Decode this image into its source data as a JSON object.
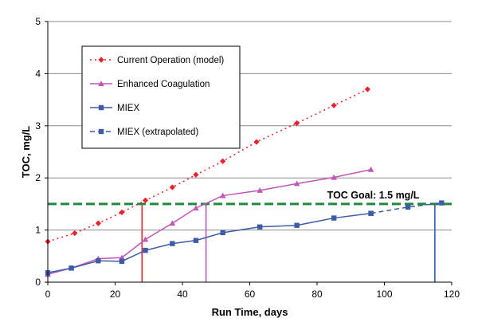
{
  "chart_data": {
    "type": "line",
    "xlabel": "Run Time, days",
    "ylabel": "TOC, mg/L",
    "xlim": [
      0,
      120
    ],
    "ylim": [
      0,
      5
    ],
    "x_ticks": [
      "0",
      "20",
      "40",
      "60",
      "80",
      "100",
      "120"
    ],
    "y_ticks": [
      "0",
      "1",
      "2",
      "3",
      "4",
      "5"
    ],
    "grid": "horizontal",
    "legend_position": "top-left",
    "series": [
      {
        "name": "Current Operation (model)",
        "color": "#e8212a",
        "line_style": "dotted",
        "marker": "diamond",
        "x": [
          0,
          8,
          15,
          22,
          29,
          37,
          44,
          52,
          62,
          74,
          85,
          95
        ],
        "y": [
          0.78,
          0.94,
          1.13,
          1.34,
          1.57,
          1.82,
          2.06,
          2.32,
          2.69,
          3.05,
          3.39,
          3.7
        ]
      },
      {
        "name": "Enhanced Coagulation",
        "color": "#c056b8",
        "line_style": "solid",
        "marker": "triangle",
        "x": [
          0,
          7,
          15,
          22,
          29,
          37,
          44,
          52,
          63,
          74,
          85,
          96
        ],
        "y": [
          0.15,
          0.27,
          0.45,
          0.47,
          0.82,
          1.13,
          1.42,
          1.66,
          1.76,
          1.89,
          2.01,
          2.16
        ]
      },
      {
        "name": "MIEX",
        "color": "#3c5ca8",
        "line_style": "solid",
        "marker": "square",
        "x": [
          0,
          7,
          15,
          22,
          29,
          37,
          44,
          52,
          63,
          74,
          85,
          96
        ],
        "y": [
          0.18,
          0.27,
          0.41,
          0.4,
          0.61,
          0.74,
          0.8,
          0.95,
          1.06,
          1.09,
          1.23,
          1.32
        ]
      },
      {
        "name": "MIEX (extrapolated)",
        "color": "#3c5ca8",
        "line_style": "dashed",
        "marker": "square",
        "x": [
          96,
          107,
          117
        ],
        "y": [
          1.32,
          1.44,
          1.52
        ]
      }
    ],
    "goal_line": {
      "label": "TOC Goal:  1.5 mg/L",
      "y": 1.5,
      "color": "#1e8a3c"
    },
    "threshold_lines": [
      {
        "x": 28,
        "color": "#e8212a"
      },
      {
        "x": 47,
        "color": "#c056b8"
      },
      {
        "x": 115,
        "color": "#3c5ca8"
      }
    ]
  }
}
